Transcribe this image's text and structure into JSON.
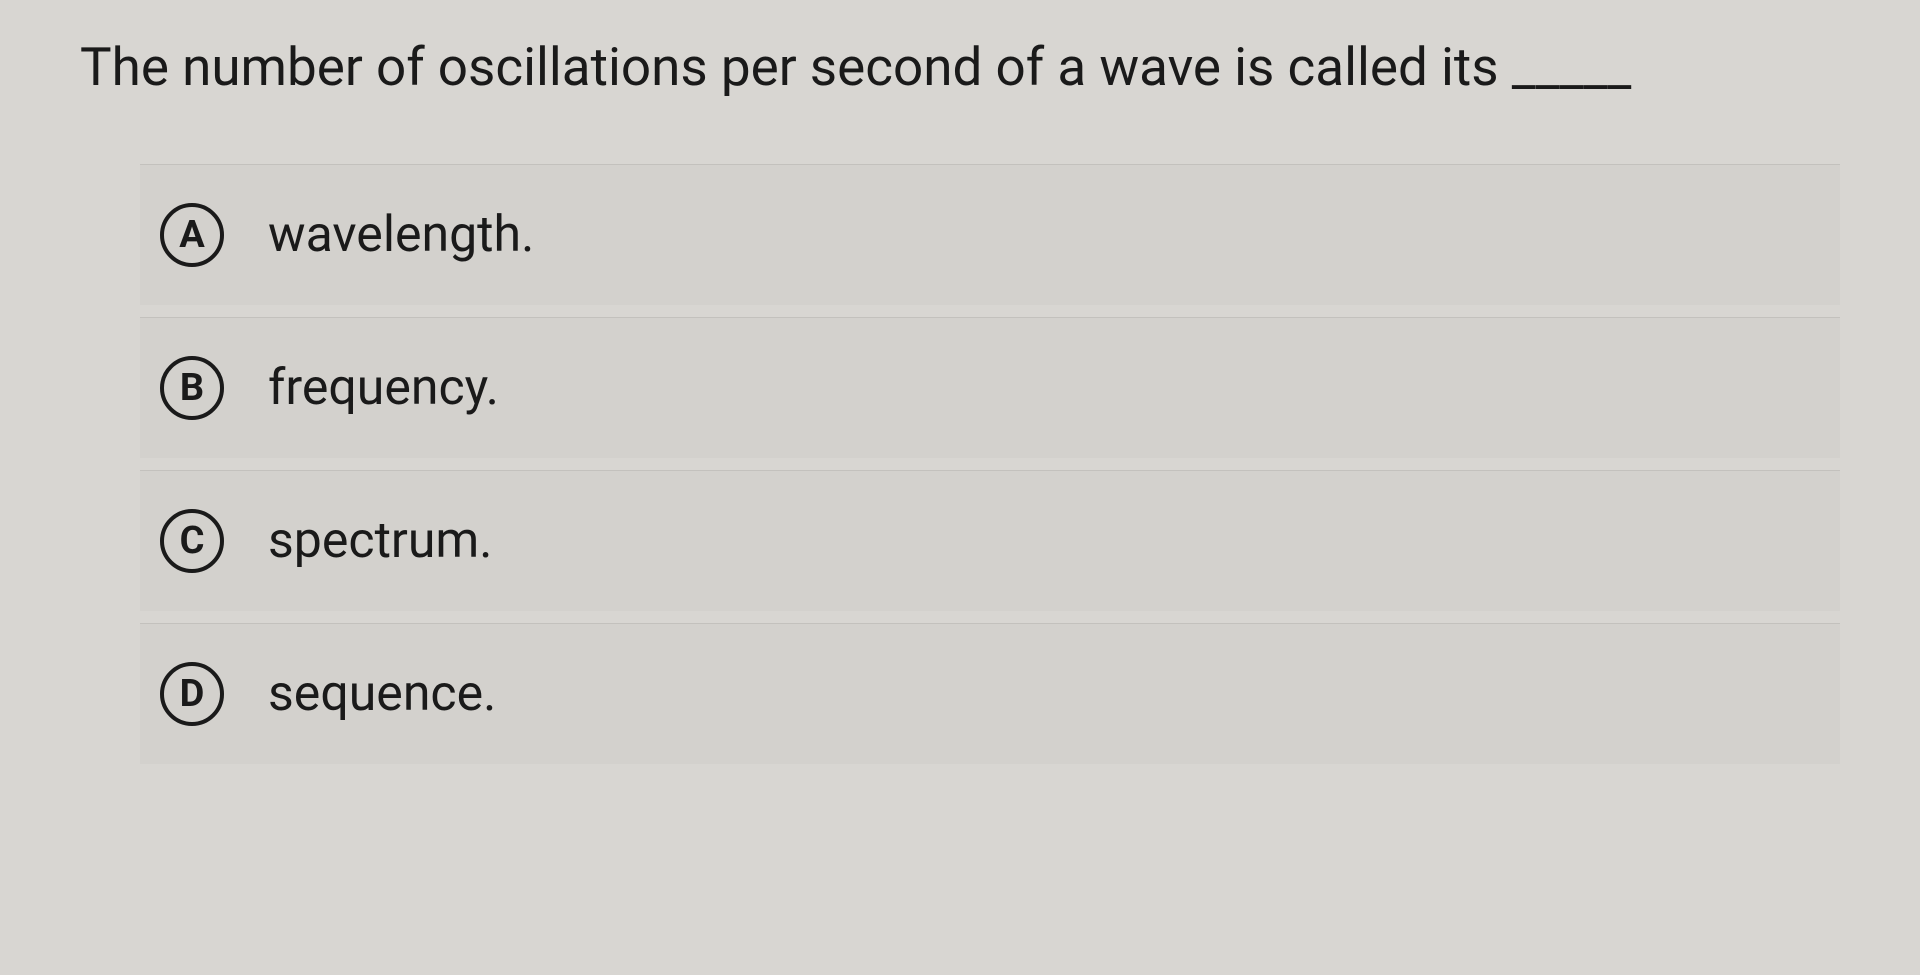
{
  "question": {
    "text": "The number of oscillations per second of a wave is called its _____"
  },
  "options": [
    {
      "letter": "A",
      "text": "wavelength."
    },
    {
      "letter": "B",
      "text": "frequency."
    },
    {
      "letter": "C",
      "text": "spectrum."
    },
    {
      "letter": "D",
      "text": "sequence."
    }
  ],
  "colors": {
    "background": "#d8d6d2",
    "text": "#1a1a1a",
    "option_bg": "rgba(200, 198, 194, 0.3)",
    "border": "#1a1a1a"
  },
  "typography": {
    "question_fontsize": 53,
    "option_fontsize": 50,
    "letter_fontsize": 38
  }
}
